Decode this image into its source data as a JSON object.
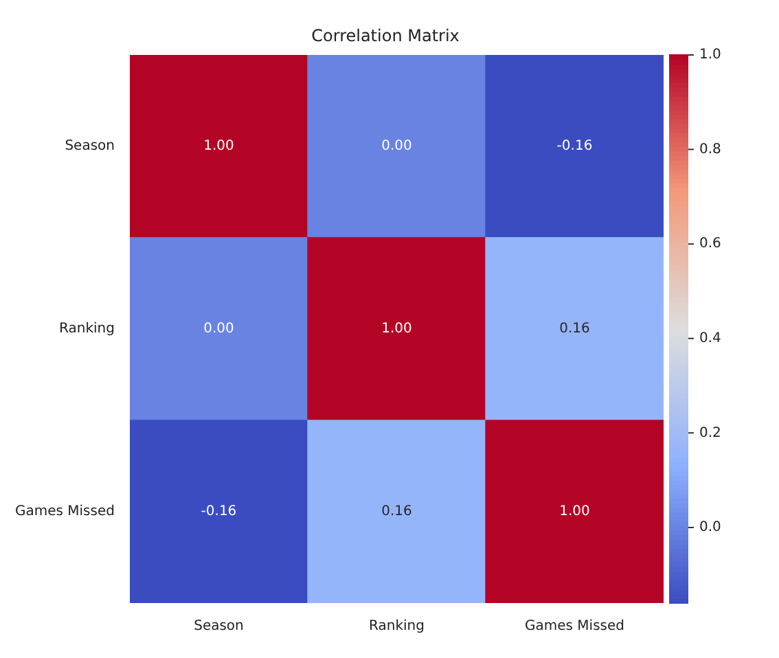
{
  "chart_data": {
    "type": "heatmap",
    "title": "Correlation Matrix",
    "categories": [
      "Season",
      "Ranking",
      "Games Missed"
    ],
    "y_categories": [
      "Season",
      "Ranking",
      "Games Missed"
    ],
    "cells": [
      [
        1,
        0,
        -0.16
      ],
      [
        0,
        1,
        0.16
      ],
      [
        -0.16,
        0.16,
        1
      ]
    ],
    "cell_labels": [
      [
        "1.00",
        "0.00",
        "-0.16"
      ],
      [
        "0.00",
        "1.00",
        "0.16"
      ],
      [
        "-0.16",
        "0.16",
        "1.00"
      ]
    ],
    "clim": [
      -0.16,
      1
    ],
    "cticks": [
      {
        "value": 0,
        "label": "0.0"
      },
      {
        "value": 0.2,
        "label": "0.2"
      },
      {
        "value": 0.4,
        "label": "0.4"
      },
      {
        "value": 0.6,
        "label": "0.6"
      },
      {
        "value": 0.8,
        "label": "0.8"
      },
      {
        "value": 1,
        "label": "1.0"
      }
    ]
  }
}
